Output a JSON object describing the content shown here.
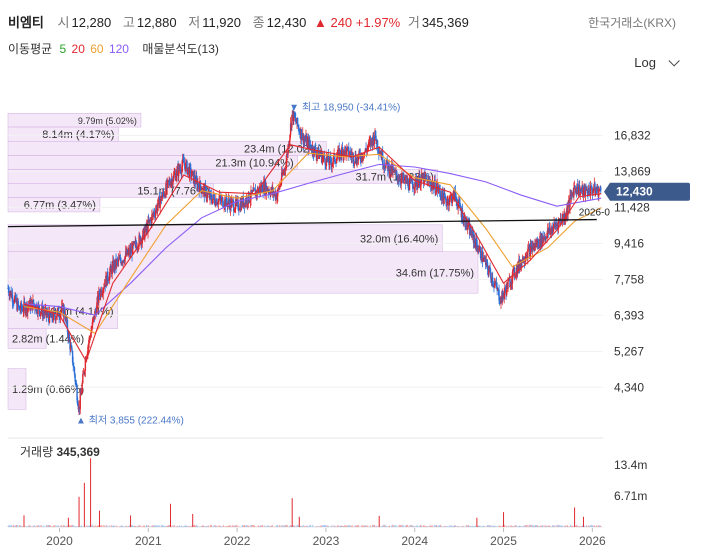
{
  "header": {
    "name": "비엠티",
    "open_label": "시",
    "open": "12,280",
    "high_label": "고",
    "high": "12,880",
    "low_label": "저",
    "low": "11,920",
    "close_label": "종",
    "close": "12,430",
    "change": "▲ 240",
    "change_pct": "+1.97%",
    "volume_label": "거",
    "volume": "345,369",
    "exchange": "한국거래소(KRX)",
    "ma_label": "이동평균",
    "ma_periods": [
      "5",
      "20",
      "60",
      "120"
    ],
    "ma_colors": [
      "#29a329",
      "#e0282e",
      "#f0a030",
      "#8b5cf6"
    ],
    "vp_label": "매물분석도(13)",
    "scale_button": "Log"
  },
  "chart_data": {
    "type": "candlestick",
    "scale": "log",
    "y_ticks": [
      "16,832",
      "13,869",
      "11,428",
      "9,416",
      "7,758",
      "6,393",
      "5,267",
      "4,340"
    ],
    "y_tick_values": [
      16832,
      13869,
      11428,
      9416,
      7758,
      6393,
      5267,
      4340
    ],
    "x_ticks": [
      "2020",
      "2021",
      "2022",
      "2023",
      "2024",
      "2025",
      "2026"
    ],
    "x_tick_years": [
      2020,
      2021,
      2022,
      2023,
      2024,
      2025,
      2026
    ],
    "x_range": [
      2019.42,
      2026.12
    ],
    "y_range": [
      3800,
      20800
    ],
    "current_price": "12,430",
    "current_value": 12430,
    "trendline_label": "2026-0",
    "high_marker": "▼ 최고 18,950 (-34.41%)",
    "high_value": 18950,
    "high_date": 2022.62,
    "low_marker": "▲ 최저 3,855 (222.44%)",
    "low_value": 3855,
    "low_date": 2020.22,
    "price_path": [
      [
        2019.42,
        7400
      ],
      [
        2019.55,
        6600
      ],
      [
        2019.7,
        6800
      ],
      [
        2019.9,
        6300
      ],
      [
        2020.05,
        6600
      ],
      [
        2020.15,
        5000
      ],
      [
        2020.22,
        3855
      ],
      [
        2020.3,
        5200
      ],
      [
        2020.45,
        7200
      ],
      [
        2020.6,
        8300
      ],
      [
        2020.8,
        9000
      ],
      [
        2020.95,
        9900
      ],
      [
        2021.1,
        11500
      ],
      [
        2021.25,
        13200
      ],
      [
        2021.4,
        14500
      ],
      [
        2021.55,
        13000
      ],
      [
        2021.7,
        12000
      ],
      [
        2021.85,
        11800
      ],
      [
        2022.0,
        11500
      ],
      [
        2022.15,
        12100
      ],
      [
        2022.3,
        12800
      ],
      [
        2022.45,
        12200
      ],
      [
        2022.55,
        14500
      ],
      [
        2022.62,
        18900
      ],
      [
        2022.75,
        16500
      ],
      [
        2022.9,
        15300
      ],
      [
        2023.05,
        14500
      ],
      [
        2023.2,
        15600
      ],
      [
        2023.35,
        14800
      ],
      [
        2023.45,
        15500
      ],
      [
        2023.55,
        16800
      ],
      [
        2023.65,
        14600
      ],
      [
        2023.8,
        13500
      ],
      [
        2023.95,
        12900
      ],
      [
        2024.1,
        13300
      ],
      [
        2024.25,
        12700
      ],
      [
        2024.35,
        11800
      ],
      [
        2024.45,
        12200
      ],
      [
        2024.55,
        10800
      ],
      [
        2024.7,
        9300
      ],
      [
        2024.85,
        8000
      ],
      [
        2024.97,
        6950
      ],
      [
        2025.1,
        7900
      ],
      [
        2025.25,
        8900
      ],
      [
        2025.4,
        9500
      ],
      [
        2025.55,
        10200
      ],
      [
        2025.7,
        11000
      ],
      [
        2025.8,
        12800
      ],
      [
        2025.9,
        12400
      ],
      [
        2026.0,
        12600
      ],
      [
        2026.1,
        12430
      ]
    ],
    "ma120_path": [
      [
        2019.6,
        6800
      ],
      [
        2020.0,
        6700
      ],
      [
        2020.4,
        6400
      ],
      [
        2020.8,
        7600
      ],
      [
        2021.2,
        9200
      ],
      [
        2021.6,
        10800
      ],
      [
        2022.0,
        11800
      ],
      [
        2022.4,
        12300
      ],
      [
        2022.8,
        13000
      ],
      [
        2023.2,
        13700
      ],
      [
        2023.6,
        14400
      ],
      [
        2024.0,
        14200
      ],
      [
        2024.4,
        13700
      ],
      [
        2024.8,
        13100
      ],
      [
        2025.2,
        12200
      ],
      [
        2025.6,
        11500
      ],
      [
        2026.0,
        11900
      ],
      [
        2026.1,
        12000
      ]
    ],
    "ma60_path": [
      [
        2019.6,
        6700
      ],
      [
        2020.0,
        6500
      ],
      [
        2020.4,
        5800
      ],
      [
        2020.8,
        7800
      ],
      [
        2021.2,
        10400
      ],
      [
        2021.6,
        12500
      ],
      [
        2022.0,
        12000
      ],
      [
        2022.4,
        12500
      ],
      [
        2022.8,
        15300
      ],
      [
        2023.2,
        15000
      ],
      [
        2023.6,
        15200
      ],
      [
        2024.0,
        13400
      ],
      [
        2024.4,
        12900
      ],
      [
        2024.8,
        10200
      ],
      [
        2025.1,
        8300
      ],
      [
        2025.5,
        9200
      ],
      [
        2025.8,
        10600
      ],
      [
        2026.1,
        11400
      ]
    ],
    "ma20_path": [
      [
        2019.6,
        6800
      ],
      [
        2020.0,
        6400
      ],
      [
        2020.3,
        5000
      ],
      [
        2020.6,
        7600
      ],
      [
        2021.0,
        10000
      ],
      [
        2021.4,
        13600
      ],
      [
        2021.8,
        12400
      ],
      [
        2022.2,
        12300
      ],
      [
        2022.6,
        16000
      ],
      [
        2022.9,
        15500
      ],
      [
        2023.3,
        15000
      ],
      [
        2023.6,
        15800
      ],
      [
        2024.0,
        13200
      ],
      [
        2024.4,
        12400
      ],
      [
        2024.7,
        9800
      ],
      [
        2025.0,
        7600
      ],
      [
        2025.3,
        8600
      ],
      [
        2025.6,
        10100
      ],
      [
        2025.85,
        12100
      ],
      [
        2026.1,
        12300
      ]
    ],
    "trendline": [
      [
        2019.42,
        10300
      ],
      [
        2026.05,
        10700
      ]
    ],
    "volume_profile": [
      {
        "label": "9.79m (5.02%)",
        "pct": 5.02,
        "lo": 17600,
        "hi": 18950
      },
      {
        "label": "8.14m (4.17%)",
        "pct": 4.17,
        "lo": 16300,
        "hi": 17600
      },
      {
        "label": "23.4m (12.02%)",
        "pct": 12.02,
        "lo": 15100,
        "hi": 16300
      },
      {
        "label": "21.3m (10.94%)",
        "pct": 10.94,
        "lo": 14000,
        "hi": 15100
      },
      {
        "label": "31.7m (16.23%)",
        "pct": 16.23,
        "lo": 13000,
        "hi": 14000
      },
      {
        "label": "15.1m (7.76%)",
        "pct": 7.76,
        "lo": 12050,
        "hi": 13000
      },
      {
        "label": "6.77m (3.47%)",
        "pct": 3.47,
        "lo": 11150,
        "hi": 12050
      },
      {
        "label": "32.0m (16.40%)",
        "pct": 16.4,
        "lo": 9000,
        "hi": 10400
      },
      {
        "label": "34.6m (17.75%)",
        "pct": 17.75,
        "lo": 7200,
        "hi": 9000
      },
      {
        "label": "8.07m (4.14%)",
        "pct": 4.14,
        "lo": 5950,
        "hi": 7200
      },
      {
        "label": "2.82m (1.44%)",
        "pct": 1.44,
        "lo": 5350,
        "hi": 5950
      },
      {
        "label": "1.29m (0.66%)",
        "pct": 0.66,
        "lo": 3855,
        "hi": 4800
      }
    ],
    "volume": {
      "label": "거래량",
      "value": "345,369",
      "y_ticks": [
        "13.4m",
        "6.71m"
      ],
      "y_tick_values": [
        13400000,
        6710000
      ],
      "y_max": 15500000,
      "spikes": [
        [
          2019.6,
          2500000
        ],
        [
          2020.1,
          2000000
        ],
        [
          2020.22,
          6500000
        ],
        [
          2020.28,
          9500000
        ],
        [
          2020.35,
          14800000
        ],
        [
          2020.45,
          3500000
        ],
        [
          2020.8,
          2500000
        ],
        [
          2021.25,
          5000000
        ],
        [
          2021.5,
          2800000
        ],
        [
          2022.62,
          6200000
        ],
        [
          2022.7,
          2200000
        ],
        [
          2023.6,
          2400000
        ],
        [
          2024.7,
          2000000
        ],
        [
          2025.0,
          3200000
        ],
        [
          2025.8,
          4200000
        ],
        [
          2025.9,
          2200000
        ]
      ]
    }
  }
}
